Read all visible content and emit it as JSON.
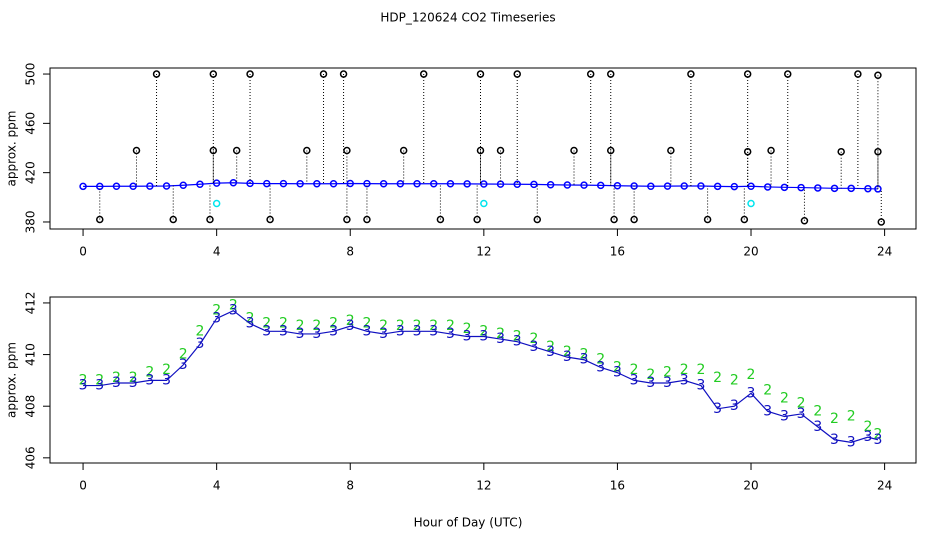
{
  "chart_data": [
    {
      "type": "scatter",
      "title": "HDP_120624  CO2 Timeseries",
      "y_label": "approx. ppm",
      "xlim": [
        -0.99,
        24.94
      ],
      "xticks": [
        0,
        4,
        8,
        12,
        16,
        20,
        24
      ],
      "ylim": [
        374.3,
        504.9
      ],
      "yticks": [
        380,
        420,
        460,
        500
      ],
      "x": [
        0,
        0.5,
        1,
        1.5,
        2,
        2.5,
        3,
        3.5,
        4,
        4.5,
        5,
        5.5,
        6,
        6.5,
        7,
        7.5,
        8,
        8.5,
        9,
        9.5,
        10,
        10.5,
        11,
        11.5,
        12,
        12.5,
        13,
        13.5,
        14,
        14.5,
        15,
        15.5,
        16,
        16.5,
        17,
        17.5,
        18,
        18.5,
        19,
        19.5,
        20,
        20.5,
        21,
        21.5,
        22,
        22.5,
        23,
        23.5,
        23.8
      ],
      "series": [
        {
          "color": "#0000ff",
          "marker": "circle",
          "line": true,
          "values": [
            408.9,
            408.9,
            409.0,
            409.0,
            409.1,
            409.2,
            409.8,
            410.6,
            411.5,
            411.8,
            411.3,
            411.1,
            411.1,
            411.0,
            411.0,
            411.0,
            411.2,
            411.1,
            411.0,
            411.0,
            411.0,
            411.0,
            411.0,
            410.9,
            410.8,
            410.7,
            410.6,
            410.5,
            410.2,
            410.0,
            409.9,
            409.7,
            409.4,
            409.2,
            409.0,
            409.1,
            409.2,
            409.2,
            408.9,
            408.7,
            409.0,
            408.4,
            408.1,
            407.9,
            407.6,
            407.3,
            407.3,
            407.0,
            406.8
          ]
        },
        {
          "color": "#000000",
          "marker": "circle",
          "drop": true,
          "x": [
            2.2,
            3.9,
            5.0,
            7.2,
            7.8,
            10.2,
            11.9,
            13.0,
            15.2,
            15.8,
            18.2,
            19.9,
            21.1,
            23.2,
            23.8,
            1.6,
            3.9,
            4.6,
            6.7,
            7.9,
            9.6,
            11.9,
            12.5,
            14.7,
            15.8,
            17.6,
            19.9,
            20.6,
            22.7,
            23.8,
            0.5,
            2.7,
            3.8,
            5.6,
            7.9,
            8.5,
            10.7,
            11.8,
            13.6,
            15.9,
            16.5,
            18.7,
            19.8,
            21.6,
            23.9
          ],
          "values": [
            500,
            500,
            500,
            500,
            500,
            500,
            500,
            500,
            500,
            500,
            500,
            500,
            500,
            500,
            499,
            438,
            438,
            438,
            438,
            438,
            438,
            438,
            438,
            438,
            438,
            438,
            437,
            438,
            437,
            437,
            382,
            382,
            382,
            382,
            382,
            382,
            382,
            382,
            382,
            382,
            382,
            382,
            382,
            381,
            380
          ]
        },
        {
          "color": "#00e5ee",
          "marker": "circle",
          "x": [
            4,
            12,
            20
          ],
          "values": [
            395,
            395,
            395
          ]
        }
      ]
    },
    {
      "type": "scatter",
      "y_label": "approx. ppm",
      "x_label": "Hour of Day (UTC)",
      "xlim": [
        -0.99,
        24.94
      ],
      "xticks": [
        0,
        4,
        8,
        12,
        16,
        20,
        24
      ],
      "ylim": [
        405.8,
        412.23
      ],
      "yticks": [
        406,
        408,
        410,
        412
      ],
      "x": [
        0,
        0.5,
        1,
        1.5,
        2,
        2.5,
        3,
        3.5,
        4,
        4.5,
        5,
        5.5,
        6,
        6.5,
        7,
        7.5,
        8,
        8.5,
        9,
        9.5,
        10,
        10.5,
        11,
        11.5,
        12,
        12.5,
        13,
        13.5,
        14,
        14.5,
        15,
        15.5,
        16,
        16.5,
        17,
        17.5,
        18,
        18.5,
        19,
        19.5,
        20,
        20.5,
        21,
        21.5,
        22,
        22.5,
        23,
        23.5,
        23.8
      ],
      "series": [
        {
          "color": "#22cc22",
          "marker": "2",
          "values": [
            409.0,
            409.0,
            409.1,
            409.1,
            409.3,
            409.4,
            410.0,
            410.9,
            411.7,
            411.9,
            411.4,
            411.2,
            411.2,
            411.1,
            411.1,
            411.2,
            411.3,
            411.2,
            411.1,
            411.1,
            411.1,
            411.1,
            411.1,
            411.0,
            410.9,
            410.8,
            410.7,
            410.6,
            410.3,
            410.1,
            410.0,
            409.8,
            409.5,
            409.4,
            409.2,
            409.3,
            409.4,
            409.4,
            409.1,
            409.0,
            409.2,
            408.6,
            408.3,
            408.1,
            407.8,
            407.5,
            407.6,
            407.2,
            406.9
          ]
        },
        {
          "color": "#1010c0",
          "marker": "3",
          "line": true,
          "values": [
            408.8,
            408.8,
            408.9,
            408.9,
            409.0,
            409.0,
            409.6,
            410.4,
            411.4,
            411.7,
            411.2,
            410.9,
            410.9,
            410.8,
            410.8,
            410.9,
            411.1,
            410.9,
            410.8,
            410.9,
            410.9,
            410.9,
            410.8,
            410.7,
            410.7,
            410.6,
            410.5,
            410.3,
            410.1,
            409.9,
            409.8,
            409.5,
            409.3,
            409.0,
            408.9,
            408.9,
            409.0,
            408.8,
            407.9,
            408.0,
            408.5,
            407.8,
            407.6,
            407.7,
            407.2,
            406.7,
            406.6,
            406.8,
            406.7
          ]
        }
      ]
    }
  ]
}
